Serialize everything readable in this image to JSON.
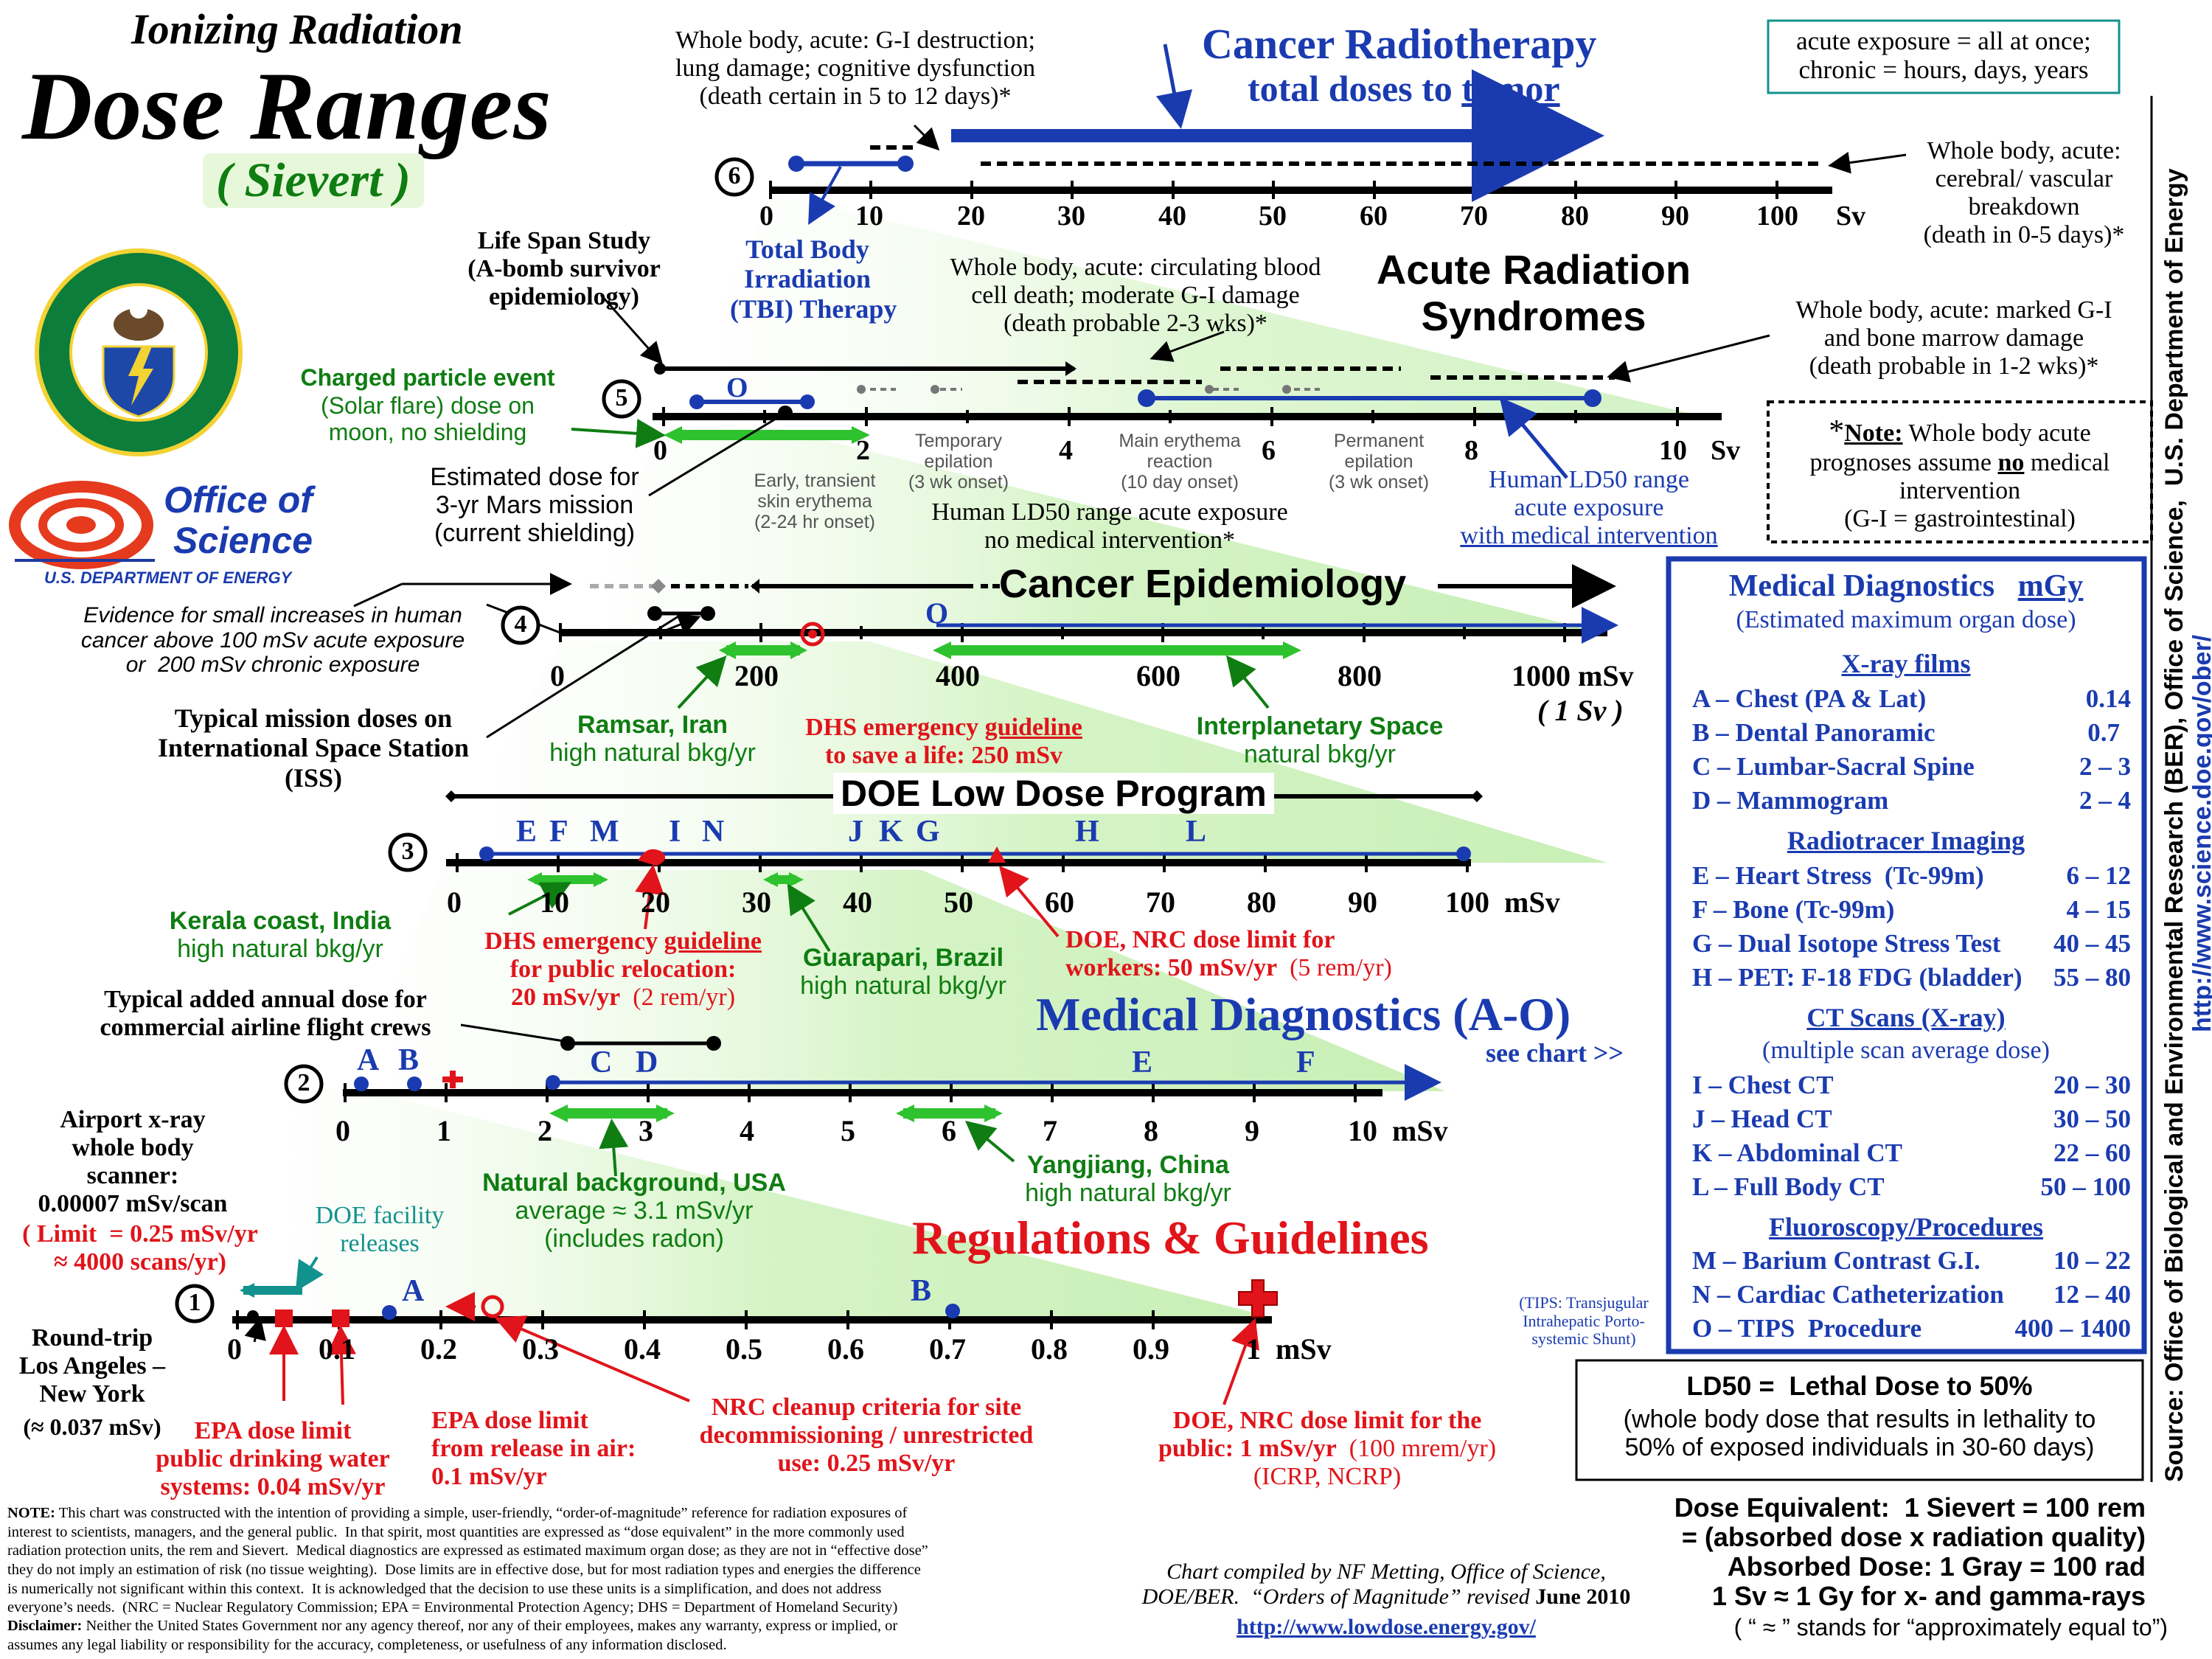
{
  "header": {
    "super": "Ionizing Radiation",
    "title": "Dose Ranges",
    "unit": "( Sievert )"
  },
  "logos": {
    "doe_seal": "DEPARTMENT OF ENERGY · UNITED STATES OF AMERICA",
    "office_line1": "Office of",
    "office_line2": "Science",
    "office_sub": "U.S. DEPARTMENT OF ENERGY"
  },
  "top_definition": "acute exposure = all at once;\nchronic = hours, days, years",
  "scale6": {
    "num": "6",
    "ticks": [
      "0",
      "10",
      "20",
      "30",
      "40",
      "50",
      "60",
      "70",
      "80",
      "90",
      "100"
    ],
    "unit": "Sv",
    "radiotherapy_title": "Cancer Radiotherapy",
    "radiotherapy_sub_a": "total doses to ",
    "radiotherapy_sub_b": "tumor",
    "gi_note": "Whole body, acute: G-I destruction;\nlung damage; cognitive dysfunction\n(death certain in 5 to 12 days)*",
    "cerebral_note": "Whole body, acute:\ncerebral/ vascular\nbreakdown\n(death in 0-5 days)*",
    "tbi": "Total Body\nIrradiation\n(TBI) Therapy"
  },
  "acute_syndromes": "Acute Radiation\nSyndromes",
  "scale5": {
    "num": "5",
    "ticks": [
      "0",
      "2",
      "4",
      "6",
      "8",
      "10"
    ],
    "unit": "Sv",
    "lss": "Life Span Study\n(A-bomb survivor\nepidemiology)",
    "circ_note": "Whole body, acute: circulating blood\ncell death; moderate G-I damage\n(death probable 2-3 wks)*",
    "marrow_note": "Whole body, acute: marked G-I\nand bone marrow damage\n(death probable in 1-2 wks)*",
    "o_label": "O",
    "charged": "Charged particle event",
    "charged_sub": "(Solar flare) dose on\nmoon, no shielding",
    "mars": "Estimated dose for\n3-yr Mars mission\n(current shielding)",
    "mars_bold": "Mars",
    "early": "Early, transient\nskin erythema\n(2-24 hr onset)",
    "temp": "Temporary\nepilation\n(3 wk onset)",
    "main_ery": "Main erythema\nreaction\n(10 day onset)",
    "perm": "Permanent\nepilation\n(3 wk onset)",
    "ld50_noint": "Human LD50 range acute exposure\nno medical intervention*",
    "ld50_int_a": "Human LD50 range",
    "ld50_int_b": "acute exposure",
    "ld50_int_c": "with medical intervention"
  },
  "note_box": {
    "star": "*",
    "title": "Note:",
    "text_a": " Whole body acute\nprognoses assume ",
    "no": "no",
    "text_b": " medical\nintervention\n(G-I = gastrointestinal)"
  },
  "scale4": {
    "num": "4",
    "title": "Cancer Epidemiology",
    "ticks": [
      "0",
      "200",
      "400",
      "600",
      "800",
      "1000 mSv"
    ],
    "sub": "( 1 Sv )",
    "o_label": "O",
    "evidence": "Evidence for small increases in human\ncancer above 100 mSv acute exposure\nor  200 mSv chronic exposure",
    "iss": "Typical mission doses on\nInternational Space Station\n(ISS)",
    "ramsar": "Ramsar, Iran",
    "ramsar_sub": "high natural bkg/yr",
    "dhs_life_a": "DHS emergency ",
    "dhs_life_b": "guideline",
    "dhs_life_c": "to save a life: 250 mSv",
    "interplanetary": "Interplanetary Space",
    "interplanetary_sub": "natural bkg/yr"
  },
  "scale3": {
    "num": "3",
    "title": "DOE Low Dose Program",
    "ticks": [
      "0",
      "10",
      "20",
      "30",
      "40",
      "50",
      "60",
      "70",
      "80",
      "90",
      "100  mSv"
    ],
    "letters": [
      "E",
      "F",
      "M",
      "I",
      "N",
      "J",
      "K",
      "G",
      "H",
      "L"
    ],
    "kerala": "Kerala coast, India",
    "kerala_sub": "high natural bkg/yr",
    "dhs_reloc_a": "DHS emergency ",
    "dhs_reloc_b": "guideline",
    "dhs_reloc_c": "for public relocation:\n20 mSv/yr",
    "dhs_reloc_d": "  (2 rem/yr)",
    "guarapari": "Guarapari, Brazil",
    "guarapari_sub": "high natural bkg/yr",
    "doe_workers_a": "DOE, NRC dose limit for\nworkers: 50 mSv/yr",
    "doe_workers_b": "  (5 rem/yr)"
  },
  "scale2": {
    "num": "2",
    "airline": "Typical added annual dose for\ncommercial airline flight crews",
    "ticks": [
      "0",
      "1",
      "2",
      "3",
      "4",
      "5",
      "6",
      "7",
      "8",
      "9",
      "10  mSv"
    ],
    "letters": [
      "A",
      "B",
      "C",
      "D",
      "E",
      "F"
    ],
    "med_title": "Medical Diagnostics (A-O)",
    "see_chart": "see chart >>",
    "natural": "Natural background, USA",
    "natural_sub": "average ≈ 3.1 mSv/yr\n(includes radon)",
    "yangjiang": "Yangjiang, China",
    "yangjiang_sub": "high natural bkg/yr"
  },
  "scale1": {
    "num": "1",
    "ticks": [
      "0",
      "0.1",
      "0.2",
      "0.3",
      "0.4",
      "0.5",
      "0.6",
      "0.7",
      "0.8",
      "0.9",
      "1  mSv"
    ],
    "letters": [
      "A",
      "B"
    ],
    "airport": "Airport x-ray\nwhole body\nscanner:\n0.00007 mSv/scan",
    "airport_limit": "( Limit  = 0.25 mSv/yr\n≈ 4000 scans/yr)",
    "doe_facility": "DOE facility\nreleases",
    "regs": "Regulations & Guidelines",
    "roundtrip": "Round-trip\nLos Angeles –\nNew York",
    "roundtrip_val": "(≈ 0.037 mSv)",
    "epa_water": "EPA dose limit\npublic drinking water\nsystems: 0.04 mSv/yr",
    "epa_air": "EPA dose limit\nfrom release in air:\n0.1 mSv/yr",
    "nrc_cleanup": "NRC cleanup criteria for site\ndecommissioning / unrestricted\nuse: 0.25 mSv/yr",
    "doe_public_a": "DOE, NRC dose limit for the\npublic: 1 mSv/yr",
    "doe_public_b": "  (100 mrem/yr)",
    "doe_public_c": "(ICRP, NCRP)",
    "tips": "(TIPS: Transjugular\nIntrahepatic Porto-\nsystemic Shunt)"
  },
  "medical_table": {
    "title": "Medical Diagnostics",
    "unit": "mGy",
    "subtitle": "(Estimated maximum organ dose)",
    "sections": [
      {
        "heading": "X-ray films",
        "note": "",
        "items": [
          {
            "label": "A – Chest (PA & Lat)",
            "value": "0.14"
          },
          {
            "label": "B – Dental Panoramic",
            "value": "0.7"
          },
          {
            "label": "C – Lumbar-Sacral Spine",
            "value": "2 – 3"
          },
          {
            "label": "D – Mammogram",
            "value": "2 – 4"
          }
        ]
      },
      {
        "heading": "Radiotracer Imaging",
        "note": "",
        "items": [
          {
            "label": "E – Heart Stress  (Tc-99m)",
            "value": "6 – 12"
          },
          {
            "label": "F – Bone (Tc-99m)",
            "value": "4 – 15"
          },
          {
            "label": "G – Dual Isotope Stress Test",
            "value": "40 – 45"
          },
          {
            "label": "H – PET: F-18 FDG (bladder)",
            "value": "55 – 80"
          }
        ]
      },
      {
        "heading": "CT Scans (X-ray)",
        "note": "(multiple scan average dose)",
        "items": [
          {
            "label": "I – Chest CT",
            "value": "20 – 30"
          },
          {
            "label": "J – Head CT",
            "value": "30 – 50"
          },
          {
            "label": "K – Abdominal CT",
            "value": "22 – 60"
          },
          {
            "label": "L – Full Body CT",
            "value": "50 – 100"
          }
        ]
      },
      {
        "heading": "Fluoroscopy/Procedures",
        "note": "",
        "items": [
          {
            "label": "M – Barium Contrast G.I.",
            "value": "10 – 22"
          },
          {
            "label": "N – Cardiac Catheterization",
            "value": "12 – 40"
          },
          {
            "label": "O – TIPS  Procedure",
            "value": "400 – 1400"
          }
        ]
      }
    ]
  },
  "ld50_box": {
    "title": "LD50 =  Lethal Dose to 50%",
    "text": "(whole body dose that results in lethality to\n50% of exposed individuals in 30-60 days)"
  },
  "equivalents": {
    "line1": "Dose Equivalent:  1 Sievert = 100 rem",
    "line2": "= (absorbed dose x radiation quality)",
    "line3": "Absorbed Dose: 1 Gray = 100 rad",
    "line4": "1 Sv ≈ 1 Gy for x- and gamma-rays",
    "line5": "( “ ≈ ” stands for “approximately equal to”)"
  },
  "source_vertical": "Source: Office of Biological and Environmental Research (BER), Office of Science,  U.S. Department of Energy",
  "source_url": "http://www.science.doe.gov/ober/",
  "credit": {
    "text": "Chart compiled by NF Metting, Office of Science,\nDOE/BER.  “Orders of Magnitude” revised ",
    "date": "June 2010",
    "url": "http://www.lowdose.energy.gov/"
  },
  "footnote": {
    "note_label": "NOTE:",
    "note": " This chart was constructed with the intention of providing a simple, user-friendly, “order-of-magnitude” reference for radiation exposures of\ninterest to scientists, managers, and the general public.  In that spirit, most quantities are expressed as “dose equivalent” in the more commonly used\nradiation protection units, the rem and Sievert.  Medical diagnostics are expressed as estimated maximum organ dose; as they are not in “effective dose”\nthey do not imply an estimation of risk (no tissue weighting).  Dose limits are in effective dose, but for most radiation types and energies the difference\nis numerically not significant within this context.  It is acknowledged that the decision to use these units is a simplification, and does not address\neveryone’s needs.  (NRC = Nuclear Regulatory Commission; EPA = Environmental Protection Agency; DHS = Department of Homeland Security)",
    "disclaimer_label": "Disclaimer:",
    "disclaimer": " Neither the United States Government nor any agency thereof, nor any of their employees, makes any warranty, express or implied, or\nassumes any legal liability or responsibility for the accuracy, completeness, or usefulness of any information disclosed."
  },
  "colors": {
    "blue": "#1a3bb0",
    "red": "#e0141a",
    "green": "#0f7d12",
    "teal": "#12928e",
    "wedge": "#c8f0b4"
  }
}
